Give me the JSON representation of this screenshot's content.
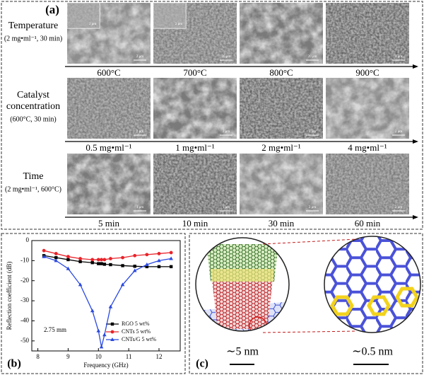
{
  "panel_a": {
    "label": "(a)",
    "rows": [
      {
        "label": [
          "Temperature"
        ],
        "condition": "(2 mg•ml⁻¹, 30 min)",
        "captions": [
          "600°C",
          "700°C",
          "800°C",
          "900°C"
        ],
        "scales": [
          "2 μm",
          "20 μm",
          "20 μm",
          "2 μm"
        ],
        "insets": [
          "2 μm",
          "2 μm"
        ]
      },
      {
        "label": [
          "Catalyst",
          "concentration"
        ],
        "condition": "(600°C, 30 min)",
        "captions": [
          "0.5 mg•ml⁻¹",
          "1 mg•ml⁻¹",
          "2 mg•ml⁻¹",
          "4 mg•ml⁻¹"
        ],
        "scales": [
          "2 μm",
          "2 μm",
          "3 μm",
          "2 μm"
        ]
      },
      {
        "label": [
          "Time"
        ],
        "condition": "(2 mg•ml⁻¹, 600°C)",
        "captions": [
          "5 min",
          "10 min",
          "30 min",
          "60 min"
        ],
        "scales": [
          "1 μm",
          "1 μm",
          "2 μm",
          "2 μm"
        ]
      }
    ]
  },
  "chart_data": {
    "type": "line",
    "panel_label": "(b)",
    "xlabel": "Frequency (GHz)",
    "ylabel": "Reflection coefficient (dB)",
    "annotation": "2.75 mm",
    "x": [
      8.2,
      8.6,
      9.0,
      9.4,
      9.8,
      10.0,
      10.1,
      10.2,
      10.4,
      10.8,
      11.2,
      11.6,
      12.0,
      12.4
    ],
    "series": [
      {
        "name": "RGO 5 wt%",
        "color": "#000000",
        "marker": "square",
        "values": [
          -7.5,
          -8.5,
          -9.5,
          -10.5,
          -11,
          -11.5,
          -11.5,
          -11.8,
          -12,
          -12.5,
          -12.8,
          -13,
          -13,
          -13
        ]
      },
      {
        "name": "CNTs 5 wt%",
        "color": "#e8232a",
        "marker": "circle",
        "values": [
          -5,
          -6.5,
          -8,
          -9,
          -9.5,
          -9.5,
          -9.5,
          -9.5,
          -9,
          -8.5,
          -7.5,
          -7,
          -6.5,
          -6
        ]
      },
      {
        "name": "CNTs/G 5 wt%",
        "color": "#2a49e0",
        "marker": "triangle",
        "values": [
          -8,
          -10,
          -14,
          -22,
          -35,
          -45,
          -53,
          -47,
          -33,
          -22,
          -15,
          -12,
          -10,
          -9
        ]
      }
    ],
    "xlim": [
      7.8,
      12.7
    ],
    "xticks": [
      8,
      9,
      10,
      11,
      12
    ],
    "ylim": [
      -55,
      0
    ],
    "yticks": [
      -50,
      -40,
      -30,
      -20,
      -10,
      0
    ]
  },
  "panel_c": {
    "label": "(c)",
    "scale_left": "∼5 nm",
    "scale_right": "∼0.5 nm"
  }
}
